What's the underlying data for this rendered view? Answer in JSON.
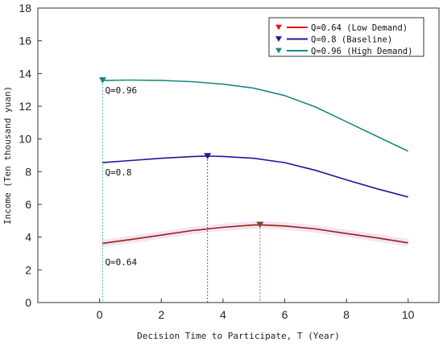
{
  "chart_data": {
    "type": "line",
    "xlabel": "Decision Time to Participate, T (Year)",
    "ylabel": "Income (Ten thousand yuan)",
    "xlim": [
      -2,
      11
    ],
    "ylim": [
      0,
      18
    ],
    "xticks": [
      0,
      2,
      4,
      6,
      8,
      10
    ],
    "yticks": [
      0,
      2,
      4,
      6,
      8,
      10,
      12,
      14,
      16,
      18
    ],
    "grid": false,
    "legend_position": "top-right",
    "series": [
      {
        "name": "Q=0.64 (Low Demand)",
        "color": "#8b2a0a",
        "legend_color": "#e8110f",
        "x": [
          0.1,
          1,
          2,
          3,
          4,
          5,
          5.2,
          6,
          7,
          8,
          9,
          10
        ],
        "y": [
          3.62,
          3.85,
          4.12,
          4.4,
          4.6,
          4.74,
          4.75,
          4.68,
          4.5,
          4.22,
          3.95,
          3.65
        ],
        "marker": {
          "x": 5.2,
          "y": 4.75,
          "color": "#7a4a20"
        },
        "label": "Q=0.64",
        "band": true
      },
      {
        "name": "Q=0.8  (Baseline)",
        "color": "#1a1a9a",
        "legend_color": "#1a1a9a",
        "x": [
          0.1,
          1,
          2,
          3,
          3.5,
          4,
          5,
          6,
          7,
          8,
          9,
          10
        ],
        "y": [
          8.55,
          8.68,
          8.82,
          8.92,
          8.95,
          8.93,
          8.82,
          8.55,
          8.08,
          7.5,
          6.95,
          6.45
        ],
        "marker": {
          "x": 3.5,
          "y": 8.95,
          "color": "#1a1a9a"
        },
        "label": "Q=0.8"
      },
      {
        "name": "Q=0.96 (High Demand)",
        "color": "#1a8a82",
        "legend_color": "#1a8a82",
        "x": [
          0.1,
          1,
          2,
          3,
          4,
          5,
          6,
          7,
          8,
          9,
          10
        ],
        "y": [
          13.58,
          13.6,
          13.58,
          13.5,
          13.35,
          13.1,
          12.65,
          11.95,
          11.05,
          10.15,
          9.25
        ],
        "marker": {
          "x": 0.1,
          "y": 13.58,
          "color": "#1a8a82"
        },
        "label": "Q=0.96"
      }
    ]
  }
}
